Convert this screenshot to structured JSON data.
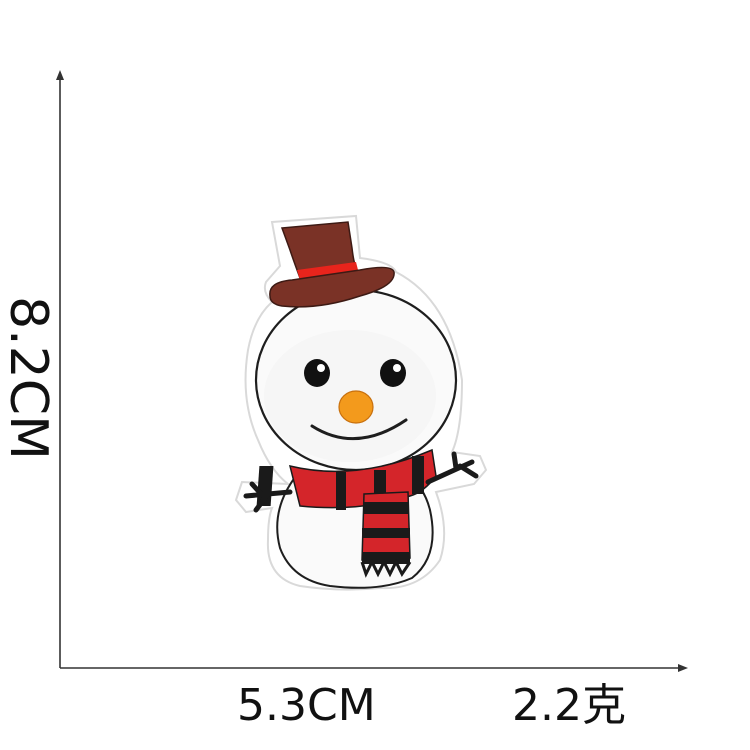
{
  "dimensions": {
    "height": "8.2CM",
    "width": "5.3CM",
    "weight": "2.2克"
  },
  "colors": {
    "background": "#ffffff",
    "hat_brown": "#7a3226",
    "hat_band": "#e8241c",
    "scarf_red": "#d4252a",
    "scarf_black": "#1a1a1a",
    "nose_orange": "#f39a1c",
    "felt_white": "#fbfbfb",
    "outline": "#222222"
  }
}
